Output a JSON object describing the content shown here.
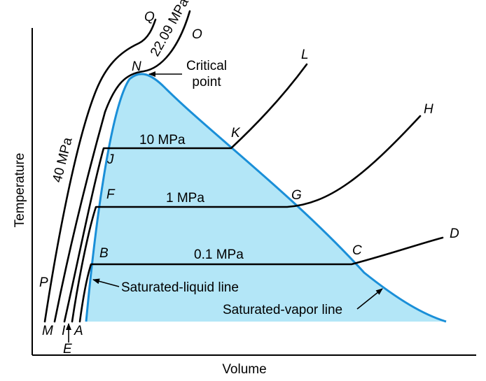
{
  "diagram": {
    "axes": {
      "x_label": "Volume",
      "y_label": "Temperature"
    },
    "dome": {
      "fill_color": "#b3e6f7",
      "line_color": "#1a8fd8",
      "critical_point_label": [
        "Critical",
        "point"
      ],
      "saturated_liquid_label": "Saturated-liquid line",
      "saturated_vapor_label": "Saturated-vapor line"
    },
    "isobars": [
      {
        "pressure": "0.1 MPa",
        "left_point": "B",
        "right_point": "C",
        "end_point": "D"
      },
      {
        "pressure": "1 MPa",
        "left_point": "F",
        "right_point": "G",
        "end_point": "H"
      },
      {
        "pressure": "10 MPa",
        "left_point": "J",
        "right_point": "K",
        "end_point": "L"
      },
      {
        "pressure": "22.09 MPa",
        "label_point": "N",
        "end_point": "O"
      },
      {
        "pressure": "40 MPa",
        "start_point": "P",
        "end_point": "Q"
      }
    ],
    "bottom_points": [
      "M",
      "I",
      "A",
      "E"
    ]
  }
}
